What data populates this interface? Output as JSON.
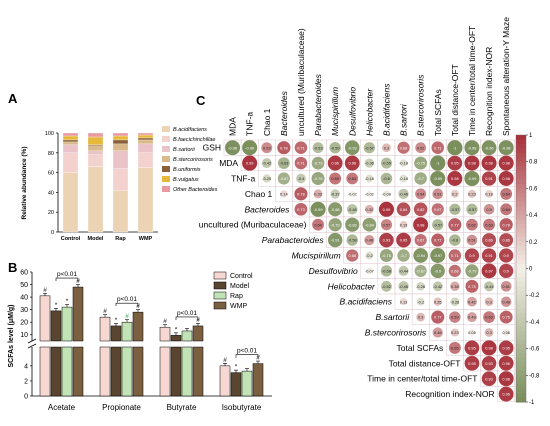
{
  "panels": {
    "a": "A",
    "b": "B",
    "c": "C"
  },
  "chart_data": [
    {
      "type": "bar",
      "panel": "A",
      "stacked": true,
      "ylabel": "Relative abundance (%)",
      "ylim": [
        0,
        100
      ],
      "yticks": [
        "0",
        "20",
        "40",
        "60",
        "80",
        "100"
      ],
      "categories": [
        "Control",
        "Model",
        "Rap",
        "WMP"
      ],
      "series": [
        {
          "name": "B.acidifaciens",
          "color": "#ecd3b4",
          "values": [
            60,
            66,
            42,
            65
          ]
        },
        {
          "name": "B.faecichinchillae",
          "color": "#f3d2cd",
          "values": [
            20,
            12,
            22,
            15
          ]
        },
        {
          "name": "B.sartorii",
          "color": "#e9c3c7",
          "values": [
            8,
            4,
            18,
            9
          ]
        },
        {
          "name": "B.stercorirosoris",
          "color": "#d9b88a",
          "values": [
            3,
            5,
            7,
            4
          ]
        },
        {
          "name": "B.uniformis",
          "color": "#8a6038",
          "values": [
            2,
            1,
            4,
            2
          ]
        },
        {
          "name": "B.vulgatus",
          "color": "#e6b83c",
          "values": [
            4,
            8,
            4,
            3
          ]
        },
        {
          "name": "Other Bacteroides",
          "color": "#e89aa0",
          "values": [
            3,
            4,
            3,
            2
          ]
        }
      ],
      "legend_position": "right"
    },
    {
      "type": "bar",
      "panel": "B",
      "ylabel": "SCFAs level (μM/g)",
      "axis_break": true,
      "lower_yticks": [
        "0",
        "2",
        "4"
      ],
      "upper_yticks": [
        "10",
        "20",
        "30",
        "40",
        "50",
        "60"
      ],
      "categories": [
        "Acetate",
        "Propionate",
        "Butyrate",
        "Isobutyrate"
      ],
      "series": [
        {
          "name": "Control",
          "color": "#f6d7d1",
          "values": [
            41,
            24,
            16,
            4.0
          ]
        },
        {
          "name": "Model",
          "color": "#5a4630",
          "values": [
            29,
            17,
            9.5,
            3.1
          ]
        },
        {
          "name": "Rap",
          "color": "#c1e3b5",
          "values": [
            32,
            20,
            13,
            3.3
          ]
        },
        {
          "name": "WMP",
          "color": "#7a6040",
          "values": [
            48,
            28,
            17,
            4.3
          ]
        }
      ],
      "significance": [
        {
          "group": 0,
          "label": "p<0.01",
          "marks": [
            "#",
            "*",
            "*",
            "#"
          ]
        },
        {
          "group": 1,
          "label": "p<0.01",
          "marks": [
            "#",
            "*",
            "#",
            "#"
          ]
        },
        {
          "group": 2,
          "label": "p<0.01",
          "marks": [
            "#",
            "*",
            "",
            "#"
          ]
        },
        {
          "group": 3,
          "label": "p<0.01",
          "marks": [
            "#",
            "*",
            "",
            "#"
          ]
        }
      ],
      "legend_position": "top-right"
    },
    {
      "type": "heatmap",
      "panel": "C",
      "colorbar_ticks": [
        "-1",
        "-0.8",
        "-0.6",
        "-0.4",
        "-0.2",
        "0",
        "0.2",
        "0.4",
        "0.6",
        "0.8",
        "1"
      ],
      "columns": [
        "MDA",
        "TNF-a",
        "Chao 1",
        "Bacteroides",
        "uncultured (Muribaculaceae)",
        "Parabacteroides",
        "Mucispirillum",
        "Desulfovibrio",
        "Helicobacter",
        "B.acidifaciens",
        "B.sartori",
        "B.stercorirosoris",
        "Total SCFAs",
        "Total distance-OFT",
        "Time in center/total time-OFT",
        "Recognition index-NOR",
        "Spontaneous alteration-Y Maze"
      ],
      "column_italic": [
        false,
        false,
        false,
        true,
        false,
        true,
        true,
        true,
        true,
        true,
        true,
        true,
        false,
        false,
        false,
        false,
        false
      ],
      "rows": [
        "GSH",
        "MDA",
        "TNF-a",
        "Chao 1",
        "Bacteroides",
        "uncultured (Muribaculaceae)",
        "Parabacteroides",
        "Mucispirillum",
        "Desulfovibrio",
        "Helicobacter",
        "B.acidifaciens",
        "B.sartorii",
        "B.stercorirosoris",
        "Total SCFAs",
        "Total distance-OFT",
        "Time in center/total time-OFT",
        "Recognition index-NOR"
      ],
      "row_italic": [
        false,
        false,
        false,
        false,
        true,
        false,
        true,
        true,
        true,
        true,
        true,
        true,
        true,
        false,
        false,
        false,
        false
      ],
      "values": [
        [
          "-0.98",
          "-0.99",
          "0.53",
          "0.78",
          "0.71",
          "-0.53",
          "-0.59",
          "-0.93",
          "-0.57",
          "0.3",
          "0.68",
          "0.52",
          "0.71",
          "-1",
          "-0.98",
          "-0.96",
          "-0.98"
        ],
        [
          "",
          "0.99",
          "-0.42",
          "-0.63",
          "0.71",
          "-0.73",
          "0.96",
          "0.96",
          "-0.36",
          "-0.55",
          "-0.18",
          "-0.75",
          "-1",
          "0.95",
          "0.98",
          "0.98",
          "0.98"
        ],
        [
          "",
          "",
          "-0.25",
          "-0.67",
          "-0.4",
          "-0.76",
          "0.65",
          "0.63",
          "-0.18",
          "-0.6",
          "-0.18",
          "-0.7",
          "-0.99",
          "0.98",
          "-0.99",
          "0.91",
          "0.98"
        ],
        [
          "",
          "",
          "",
          "0.14",
          "0.78",
          "0.33",
          "-0.37",
          "-0.02",
          "-0.02",
          "-0.08",
          "-0.46",
          "0.54",
          "0.51",
          "0.2",
          "0.23",
          "0.18",
          "0.64"
        ],
        [
          "",
          "",
          "",
          "",
          "0.73",
          "-0.99",
          "-0.88",
          "-0.48",
          "0.32",
          "0.99",
          "0.84",
          "0.82",
          "0.67",
          "-0.57",
          "-0.57",
          "0.5",
          "0.64"
        ],
        [
          "",
          "",
          "",
          "",
          "",
          "0.64",
          "-0.79",
          "-0.89",
          "-0.84",
          "0.57",
          "0.19",
          "0.98",
          "-0.57",
          "0.77",
          "0.62",
          "0.63",
          "0.78"
        ],
        [
          "",
          "",
          "",
          "",
          "",
          "",
          "-0.91",
          "-0.58",
          "0.46",
          "0.93",
          "0.95",
          "0.67",
          "0.77",
          "-0.6",
          "0.51",
          "0.86",
          "0.86"
        ],
        [
          "",
          "",
          "",
          "",
          "",
          "",
          "",
          "0.68",
          "-0.2",
          "-0.76",
          "-0.7",
          "-0.94",
          "-0.97",
          "0.71",
          "0.9",
          "0.91",
          "0.9"
        ],
        [
          "",
          "",
          "",
          "",
          "",
          "",
          "",
          "",
          "-0.07",
          "-0.58",
          "-0.44",
          "-0.67",
          "-0.9",
          "0.68",
          "-0.79",
          "0.97",
          "0.9"
        ],
        [
          "",
          "",
          "",
          "",
          "",
          "",
          "",
          "",
          "",
          "-0.52",
          "-0.46",
          "-0.28",
          "-0.42",
          "0.38",
          "0.75",
          "-0.44",
          "0.51"
        ],
        [
          "",
          "",
          "",
          "",
          "",
          "",
          "",
          "",
          "",
          "",
          "0.13",
          "-0.2",
          "0.25",
          "-0.28",
          "0.42",
          "0.3",
          "0.49"
        ],
        [
          "",
          "",
          "",
          "",
          "",
          "",
          "",
          "",
          "",
          "",
          "",
          "0.3",
          "0.77",
          "0.59",
          "0.43",
          "0.63",
          "0.75"
        ],
        [
          "",
          "",
          "",
          "",
          "",
          "",
          "",
          "",
          "",
          "",
          "",
          "",
          "0.46",
          "0.23",
          "0.05",
          "0.3",
          "0.06"
        ],
        [
          "",
          "",
          "",
          "",
          "",
          "",
          "",
          "",
          "",
          "",
          "",
          "",
          "",
          "0.65",
          "0.95",
          "0.98",
          "0.95"
        ],
        [
          "",
          "",
          "",
          "",
          "",
          "",
          "",
          "",
          "",
          "",
          "",
          "",
          "",
          "",
          "0.95",
          "0.93",
          "0.96"
        ],
        [
          "",
          "",
          "",
          "",
          "",
          "",
          "",
          "",
          "",
          "",
          "",
          "",
          "",
          "",
          "",
          "0.93",
          "0.98"
        ],
        [
          "",
          "",
          "",
          "",
          "",
          "",
          "",
          "",
          "",
          "",
          "",
          "",
          "",
          "",
          "",
          "",
          "0.96"
        ]
      ],
      "colors": {
        "negative": "#7a8f5c",
        "neutral": "#f4f0e8",
        "positive": "#a8323c"
      },
      "legend_position": "right"
    }
  ]
}
